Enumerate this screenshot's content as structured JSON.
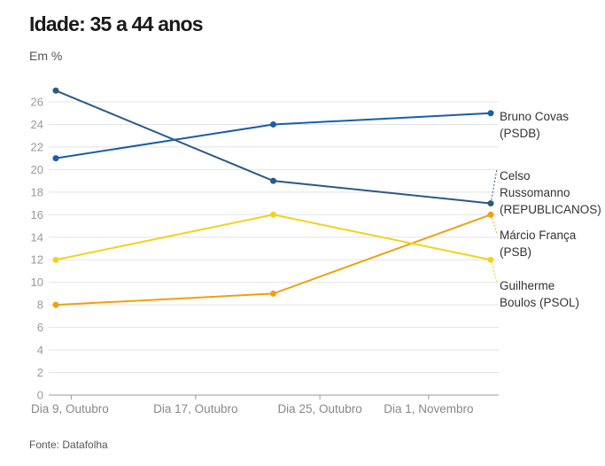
{
  "header": {
    "title": "Idade: 35 a 44 anos",
    "subtitle": "Em %"
  },
  "footer": {
    "source": "Fonte: Datafolha"
  },
  "chart_data": {
    "type": "line",
    "title": "Idade: 35 a 44 anos",
    "subtitle": "Em %",
    "xlabel": "",
    "ylabel": "",
    "x_type": "date",
    "x": [
      "2020-10-08",
      "2020-10-22",
      "2020-11-05"
    ],
    "x_ticks": [
      {
        "date": "2020-10-09",
        "label": "Dia 9, Outubro"
      },
      {
        "date": "2020-10-17",
        "label": "Dia 17, Outubro"
      },
      {
        "date": "2020-10-25",
        "label": "Dia 25, Outubro"
      },
      {
        "date": "2020-11-01",
        "label": "Dia 1, Novembro"
      }
    ],
    "x_range": [
      "2020-10-08",
      "2020-11-05"
    ],
    "ylim": [
      0,
      26
    ],
    "y_ticks": [
      0,
      2,
      4,
      6,
      8,
      10,
      12,
      14,
      16,
      18,
      20,
      22,
      24,
      26
    ],
    "grid": true,
    "legend": "right-end-labels",
    "series": [
      {
        "name": "Bruno Covas (PSDB)",
        "label_lines": [
          "Bruno Covas",
          "(PSDB)"
        ],
        "color": "#1a5ea8",
        "values": [
          21,
          24,
          25
        ]
      },
      {
        "name": "Celso Russomanno (REPUBLICANOS)",
        "label_lines": [
          "Celso",
          "Russomanno",
          "(REPUBLICANOS)"
        ],
        "color": "#2a5a85",
        "values": [
          27,
          19,
          17
        ]
      },
      {
        "name": "Márcio França (PSB)",
        "label_lines": [
          "Márcio França",
          "(PSB)"
        ],
        "color": "#f0a010",
        "values": [
          8,
          9,
          16
        ]
      },
      {
        "name": "Guilherme Boulos (PSOL)",
        "label_lines": [
          "Guilherme",
          "Boulos (PSOL)"
        ],
        "color": "#f2d21f",
        "values": [
          12,
          16,
          12
        ]
      }
    ],
    "source": "Fonte: Datafolha"
  }
}
